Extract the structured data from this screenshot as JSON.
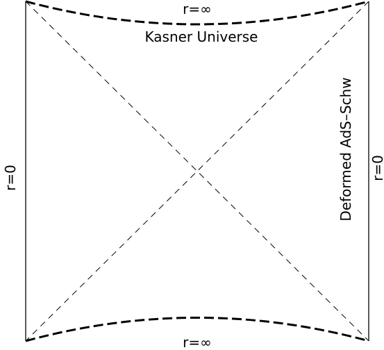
{
  "diagram": {
    "top_boundary_label": "r=∞",
    "bottom_boundary_label": "r=∞",
    "left_boundary_label": "r=0",
    "right_boundary_label": "r=0",
    "top_region_label": "Kasner Universe",
    "right_region_label": "Deformed AdS–Schw"
  },
  "colors": {
    "ink": "#000000",
    "background": "#ffffff"
  }
}
